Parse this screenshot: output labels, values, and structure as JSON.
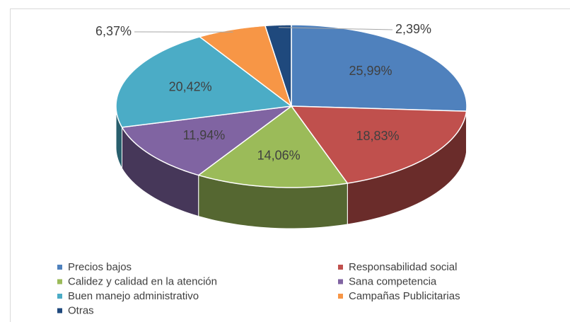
{
  "chart_data": {
    "type": "pie3d",
    "categories": [
      "Precios bajos",
      "Responsabilidad social",
      "Calidez y calidad en la atención",
      "Sana competencia",
      "Buen manejo administrativo",
      "Campañas Publicitarias",
      "Otras"
    ],
    "values": [
      25.99,
      18.83,
      14.06,
      11.94,
      20.42,
      6.37,
      2.39
    ],
    "value_labels": [
      "25,99%",
      "18,83%",
      "14,06%",
      "11,94%",
      "20,42%",
      "6,37%",
      "2,39%"
    ],
    "colors": [
      "#4f81bd",
      "#c0504d",
      "#9bbb59",
      "#8064a2",
      "#4bacc6",
      "#f79646",
      "#1f497d"
    ],
    "legend": "bottom"
  }
}
